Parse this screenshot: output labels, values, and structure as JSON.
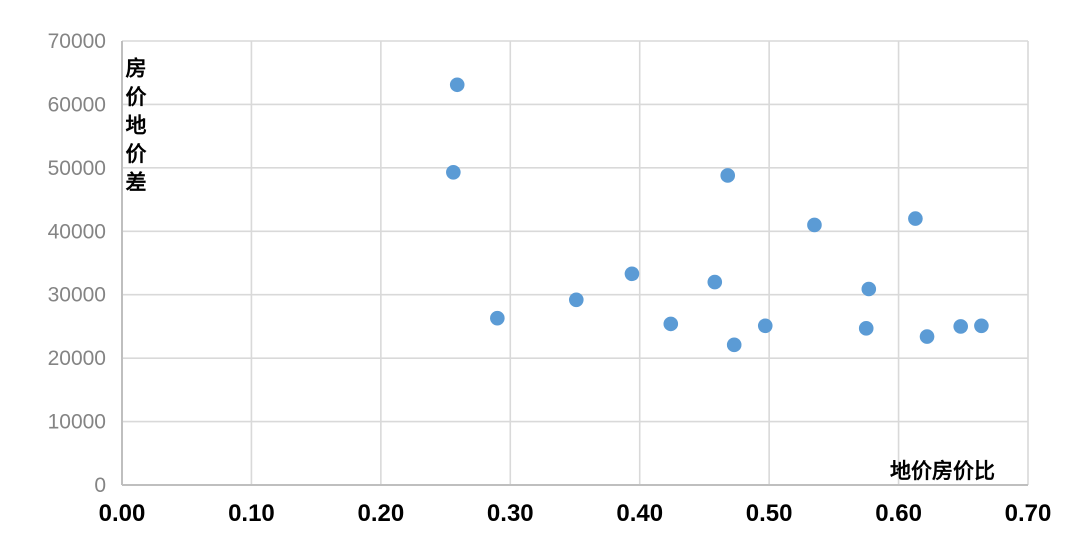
{
  "chart_data": {
    "type": "scatter",
    "title": "",
    "x_axis": {
      "label": "地价房价比",
      "min": 0.0,
      "max": 0.7,
      "tick_step": 0.1,
      "tick_labels": [
        "0.00",
        "0.10",
        "0.20",
        "0.30",
        "0.40",
        "0.50",
        "0.60",
        "0.70"
      ]
    },
    "y_axis": {
      "label": "房价地价差",
      "min": 0,
      "max": 70000,
      "tick_step": 10000,
      "tick_labels": [
        "0",
        "10000",
        "20000",
        "30000",
        "40000",
        "50000",
        "60000",
        "70000"
      ]
    },
    "grid": true,
    "legend_position": "none",
    "points": [
      [
        0.256,
        49300
      ],
      [
        0.259,
        63100
      ],
      [
        0.29,
        26300
      ],
      [
        0.351,
        29200
      ],
      [
        0.394,
        33300
      ],
      [
        0.424,
        25400
      ],
      [
        0.458,
        32000
      ],
      [
        0.468,
        48800
      ],
      [
        0.473,
        22100
      ],
      [
        0.497,
        25100
      ],
      [
        0.535,
        41000
      ],
      [
        0.575,
        24700
      ],
      [
        0.577,
        30900
      ],
      [
        0.613,
        42000
      ],
      [
        0.622,
        23400
      ],
      [
        0.648,
        25000
      ],
      [
        0.664,
        25100
      ]
    ],
    "colors": {
      "point": "#5B9BD5",
      "gridline": "#D9D9D9",
      "axis_line": "#BFBFBF",
      "x_tick_label": "#000000",
      "y_tick_label": "#848484",
      "axis_title": "#000000"
    }
  }
}
